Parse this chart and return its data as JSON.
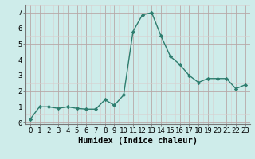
{
  "x": [
    0,
    1,
    2,
    3,
    4,
    5,
    6,
    7,
    8,
    9,
    10,
    11,
    12,
    13,
    14,
    15,
    16,
    17,
    18,
    19,
    20,
    21,
    22,
    23
  ],
  "y": [
    0.2,
    1.0,
    1.0,
    0.9,
    1.0,
    0.9,
    0.85,
    0.85,
    1.45,
    1.1,
    1.75,
    5.8,
    6.85,
    7.0,
    5.5,
    4.2,
    3.7,
    3.0,
    2.55,
    2.8,
    2.8,
    2.8,
    2.15,
    2.4
  ],
  "line_color": "#2d7d6e",
  "marker": "D",
  "marker_size": 2.2,
  "bg_color": "#ceecea",
  "grid_color_major": "#b8a8a8",
  "grid_color_minor": "#d8cece",
  "xlabel": "Humidex (Indice chaleur)",
  "xlim": [
    -0.5,
    23.5
  ],
  "ylim": [
    -0.1,
    7.5
  ],
  "yticks": [
    0,
    1,
    2,
    3,
    4,
    5,
    6,
    7
  ],
  "xticks": [
    0,
    1,
    2,
    3,
    4,
    5,
    6,
    7,
    8,
    9,
    10,
    11,
    12,
    13,
    14,
    15,
    16,
    17,
    18,
    19,
    20,
    21,
    22,
    23
  ],
  "xtick_labels": [
    "0",
    "1",
    "2",
    "3",
    "4",
    "5",
    "6",
    "7",
    "8",
    "9",
    "10",
    "11",
    "12",
    "13",
    "14",
    "15",
    "16",
    "17",
    "18",
    "19",
    "20",
    "21",
    "22",
    "23"
  ],
  "xlabel_fontsize": 7.5,
  "tick_fontsize": 6.5,
  "linewidth": 1.0
}
